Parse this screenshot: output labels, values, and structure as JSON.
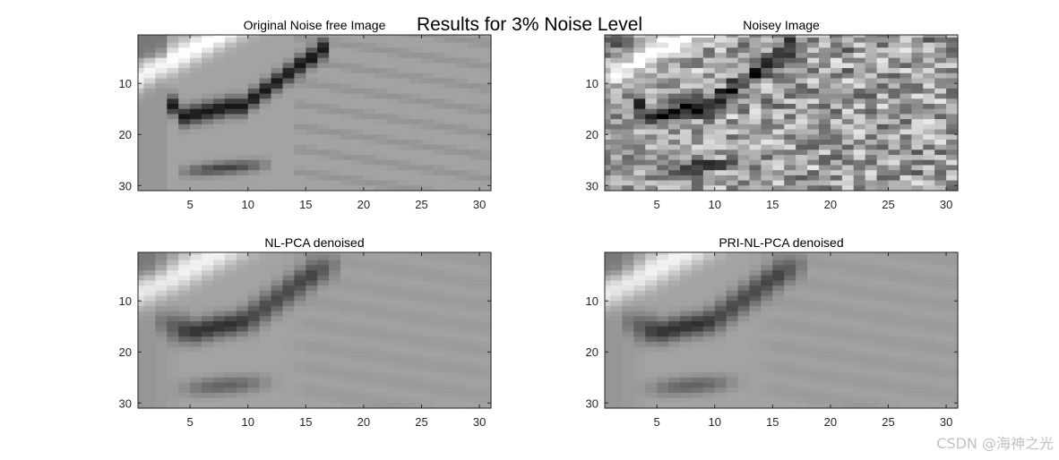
{
  "figure": {
    "suptitle": "Results for 3% Noise Level",
    "watermark": "CSDN @海神之光"
  },
  "panels": [
    {
      "id": "original",
      "title": "Original Noise free Image",
      "noise": 0.0,
      "blur": 0
    },
    {
      "id": "noisy",
      "title": "Noisey Image",
      "noise": 0.55,
      "blur": 0
    },
    {
      "id": "nlpca",
      "title": "NL-PCA denoised",
      "noise": 0.0,
      "blur": 1
    },
    {
      "id": "prinlpca",
      "title": "PRI-NL-PCA denoised",
      "noise": 0.0,
      "blur": 1
    }
  ],
  "axes": {
    "grid_size": 31,
    "xticks": [
      "5",
      "10",
      "15",
      "20",
      "25",
      "30"
    ],
    "yticks": [
      "10",
      "20",
      "30"
    ],
    "colormap": "gray"
  },
  "colors": {
    "axis": "#262626",
    "background": "#ffffff"
  }
}
